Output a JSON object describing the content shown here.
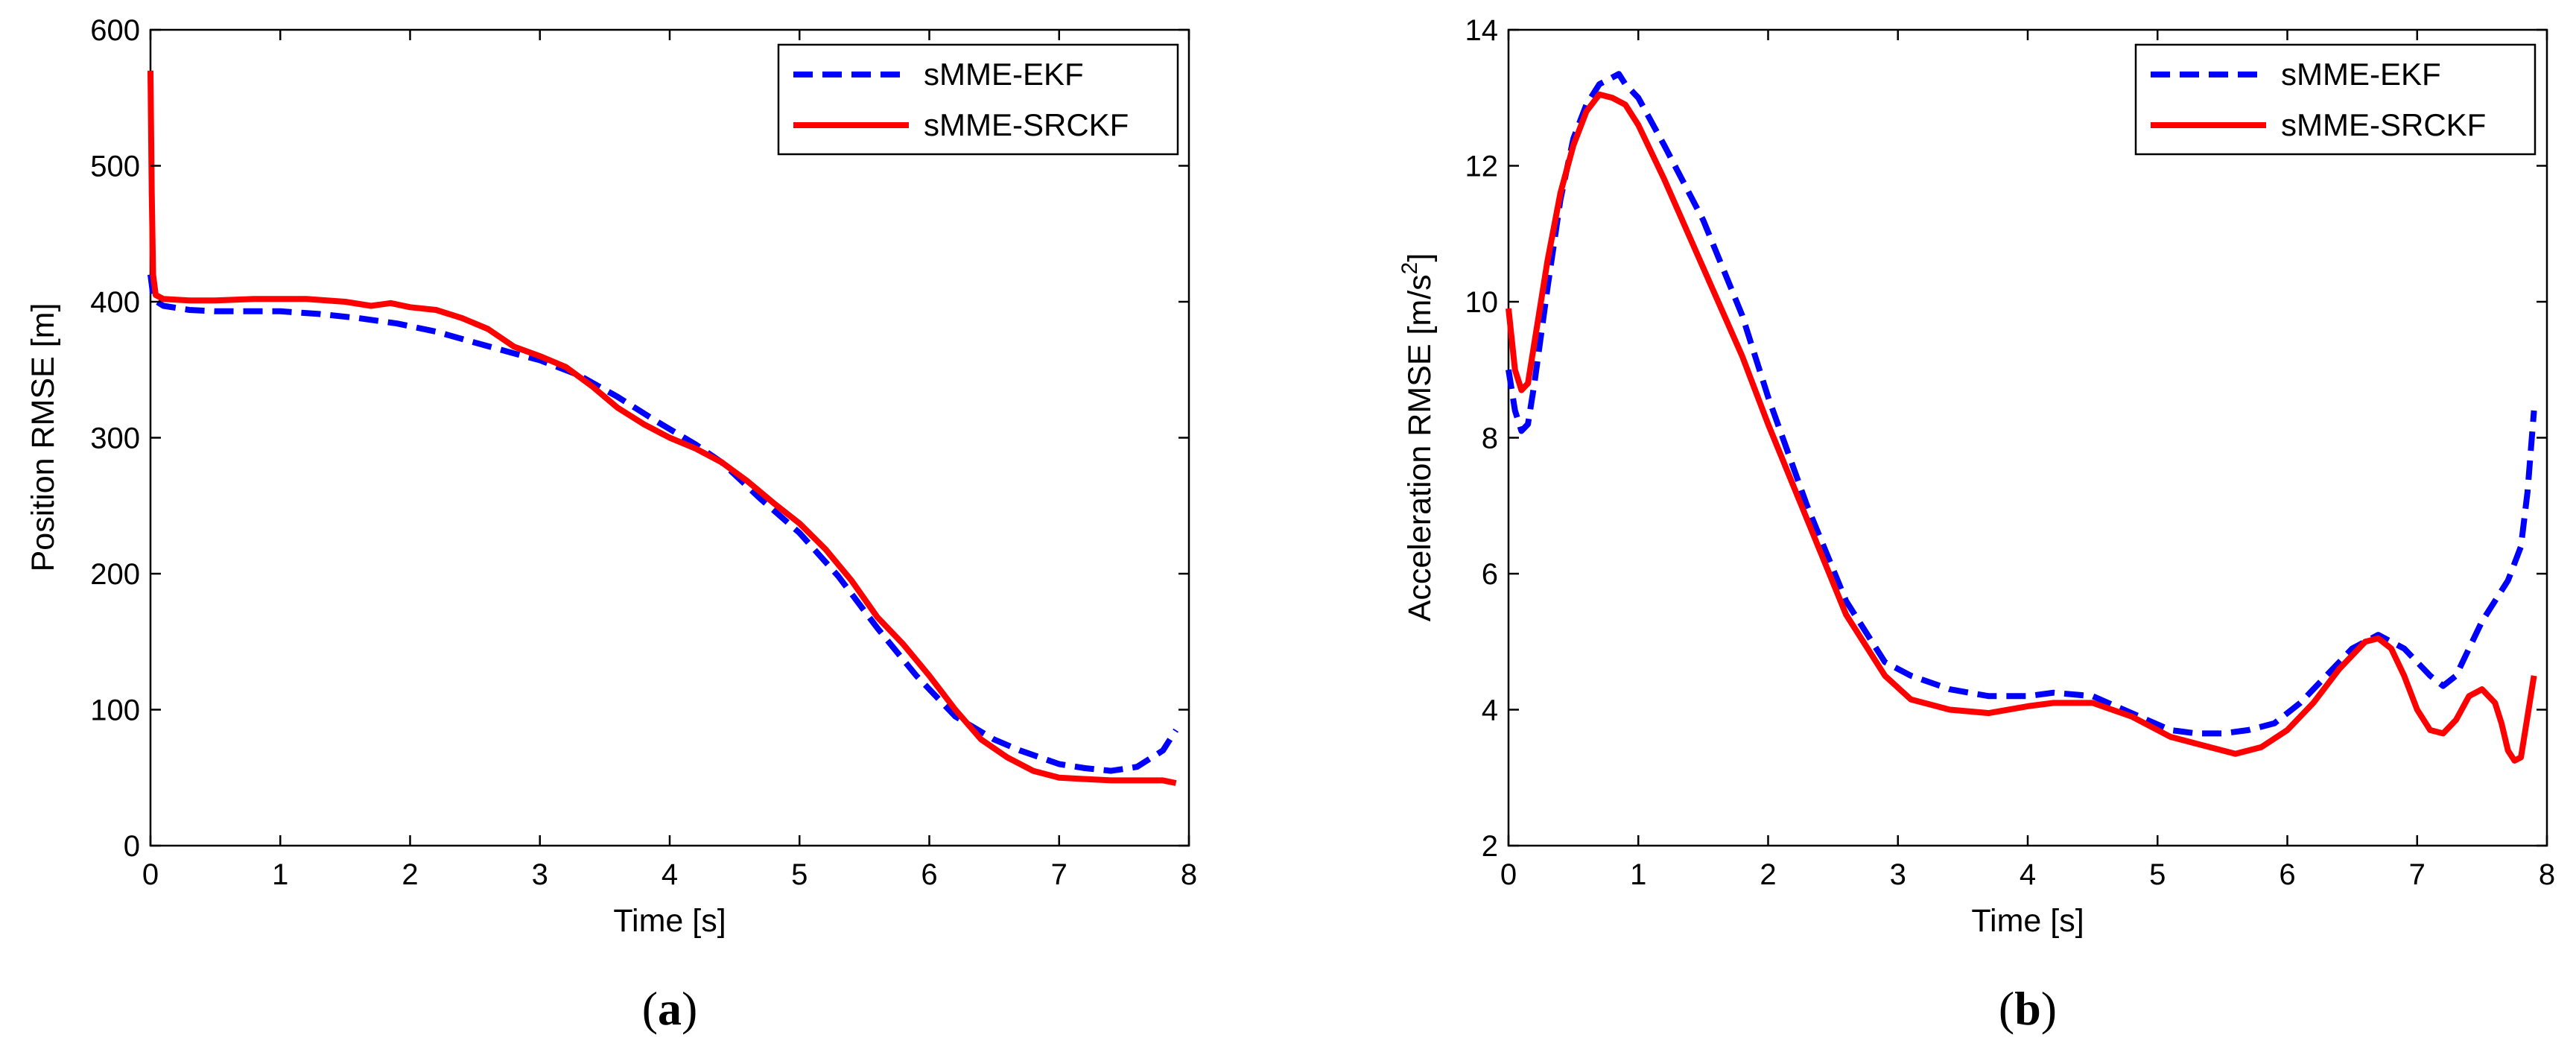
{
  "chart_data": [
    {
      "type": "line",
      "caption": "a",
      "xlabel": "Time [s]",
      "ylabel": "Position RMSE [m]",
      "xlim": [
        0,
        8
      ],
      "ylim": [
        0,
        600
      ],
      "xticks": [
        "0",
        "1",
        "2",
        "3",
        "4",
        "5",
        "6",
        "7",
        "8"
      ],
      "yticks": [
        "0",
        "100",
        "200",
        "300",
        "400",
        "500",
        "600"
      ],
      "legend_position": "top-right",
      "series": [
        {
          "name": "sMME-EKF",
          "color": "#0000ff",
          "style": "dashed",
          "x": [
            0,
            0.02,
            0.05,
            0.1,
            0.3,
            0.5,
            0.8,
            1.0,
            1.3,
            1.6,
            1.9,
            2.2,
            2.5,
            2.8,
            3.0,
            3.3,
            3.6,
            3.9,
            4.2,
            4.4,
            4.7,
            5.0,
            5.3,
            5.6,
            5.9,
            6.2,
            6.5,
            6.7,
            7.0,
            7.2,
            7.4,
            7.6,
            7.8,
            7.9
          ],
          "y": [
            420,
            405,
            400,
            397,
            394,
            393,
            393,
            393,
            391,
            388,
            384,
            378,
            370,
            362,
            357,
            346,
            330,
            312,
            295,
            282,
            255,
            230,
            198,
            160,
            125,
            95,
            78,
            70,
            60,
            57,
            55,
            58,
            70,
            85
          ]
        },
        {
          "name": "sMME-SRCKF",
          "color": "#ff0000",
          "style": "solid",
          "x": [
            0,
            0.01,
            0.02,
            0.04,
            0.1,
            0.3,
            0.5,
            0.8,
            1.0,
            1.2,
            1.5,
            1.7,
            1.85,
            2.0,
            2.2,
            2.4,
            2.6,
            2.8,
            3.0,
            3.2,
            3.4,
            3.6,
            3.8,
            4.0,
            4.2,
            4.4,
            4.6,
            4.8,
            5.0,
            5.2,
            5.4,
            5.6,
            5.8,
            6.0,
            6.2,
            6.4,
            6.6,
            6.8,
            7.0,
            7.2,
            7.4,
            7.6,
            7.8,
            7.9
          ],
          "y": [
            570,
            480,
            420,
            405,
            402,
            401,
            401,
            402,
            402,
            402,
            400,
            397,
            399,
            396,
            394,
            388,
            380,
            367,
            360,
            352,
            338,
            322,
            310,
            300,
            292,
            282,
            268,
            252,
            237,
            218,
            195,
            168,
            148,
            125,
            100,
            78,
            65,
            55,
            50,
            49,
            48,
            48,
            48,
            46
          ]
        }
      ]
    },
    {
      "type": "line",
      "caption": "b",
      "xlabel": "Time [s]",
      "ylabel": "Acceleration RMSE [m/s",
      "ylabel_sup": "2",
      "ylabel_end": "]",
      "xlim": [
        0,
        8
      ],
      "ylim": [
        2,
        14
      ],
      "xticks": [
        "0",
        "1",
        "2",
        "3",
        "4",
        "5",
        "6",
        "7",
        "8"
      ],
      "yticks": [
        "2",
        "4",
        "6",
        "8",
        "10",
        "12",
        "14"
      ],
      "legend_position": "top-right",
      "series": [
        {
          "name": "sMME-EKF",
          "color": "#0000ff",
          "style": "dashed",
          "x": [
            0,
            0.05,
            0.1,
            0.15,
            0.2,
            0.3,
            0.4,
            0.5,
            0.6,
            0.7,
            0.8,
            0.85,
            0.9,
            1.0,
            1.2,
            1.5,
            1.8,
            2.0,
            2.3,
            2.6,
            2.9,
            3.1,
            3.4,
            3.7,
            4.0,
            4.2,
            4.5,
            4.8,
            5.1,
            5.3,
            5.5,
            5.7,
            5.9,
            6.1,
            6.3,
            6.5,
            6.7,
            6.9,
            7.1,
            7.2,
            7.3,
            7.4,
            7.5,
            7.6,
            7.7,
            7.8,
            7.85,
            7.9
          ],
          "y": [
            9.0,
            8.4,
            8.1,
            8.2,
            8.8,
            10.2,
            11.5,
            12.4,
            12.9,
            13.2,
            13.3,
            13.35,
            13.2,
            13.0,
            12.3,
            11.2,
            9.8,
            8.6,
            7.0,
            5.6,
            4.7,
            4.5,
            4.3,
            4.2,
            4.2,
            4.25,
            4.2,
            3.95,
            3.7,
            3.65,
            3.65,
            3.7,
            3.8,
            4.1,
            4.5,
            4.9,
            5.1,
            4.9,
            4.5,
            4.35,
            4.5,
            4.9,
            5.3,
            5.6,
            5.9,
            6.4,
            7.2,
            8.4
          ]
        },
        {
          "name": "sMME-SRCKF",
          "color": "#ff0000",
          "style": "solid",
          "x": [
            0,
            0.05,
            0.1,
            0.15,
            0.2,
            0.3,
            0.4,
            0.5,
            0.6,
            0.7,
            0.8,
            0.9,
            1.0,
            1.2,
            1.5,
            1.8,
            2.0,
            2.3,
            2.6,
            2.9,
            3.1,
            3.4,
            3.7,
            4.0,
            4.2,
            4.5,
            4.8,
            5.1,
            5.3,
            5.6,
            5.8,
            6.0,
            6.2,
            6.4,
            6.6,
            6.7,
            6.8,
            6.9,
            7.0,
            7.1,
            7.2,
            7.3,
            7.4,
            7.5,
            7.6,
            7.65,
            7.7,
            7.75,
            7.8,
            7.85,
            7.9
          ],
          "y": [
            9.9,
            9.0,
            8.7,
            8.8,
            9.4,
            10.6,
            11.6,
            12.3,
            12.8,
            13.05,
            13.0,
            12.9,
            12.6,
            11.8,
            10.5,
            9.2,
            8.2,
            6.8,
            5.4,
            4.5,
            4.15,
            4.0,
            3.95,
            4.05,
            4.1,
            4.1,
            3.9,
            3.6,
            3.5,
            3.35,
            3.45,
            3.7,
            4.1,
            4.6,
            5.0,
            5.05,
            4.9,
            4.5,
            4.0,
            3.7,
            3.65,
            3.85,
            4.2,
            4.3,
            4.1,
            3.8,
            3.4,
            3.25,
            3.3,
            3.9,
            4.5
          ]
        }
      ]
    }
  ]
}
